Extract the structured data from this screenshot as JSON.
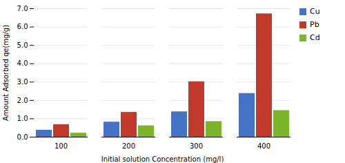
{
  "chart_data": {
    "type": "bar",
    "categories": [
      "100",
      "200",
      "300",
      "400"
    ],
    "series": [
      {
        "name": "Cu",
        "color": "#4472C4",
        "values": [
          0.38,
          0.82,
          1.38,
          2.38
        ]
      },
      {
        "name": "Pb",
        "color": "#C0392B",
        "values": [
          0.68,
          1.35,
          3.02,
          6.72
        ]
      },
      {
        "name": "Cd",
        "color": "#7DB52A",
        "values": [
          0.22,
          0.62,
          0.85,
          1.45
        ]
      }
    ],
    "xlabel": "Initial solution Concentration (mg/l)",
    "ylabel": "Amount Adsorbed qe(mg/g)",
    "ylim": [
      0,
      7
    ],
    "yticks": [
      0,
      1,
      2,
      3,
      4,
      5,
      6,
      7
    ],
    "grid": true,
    "legend": "right"
  }
}
